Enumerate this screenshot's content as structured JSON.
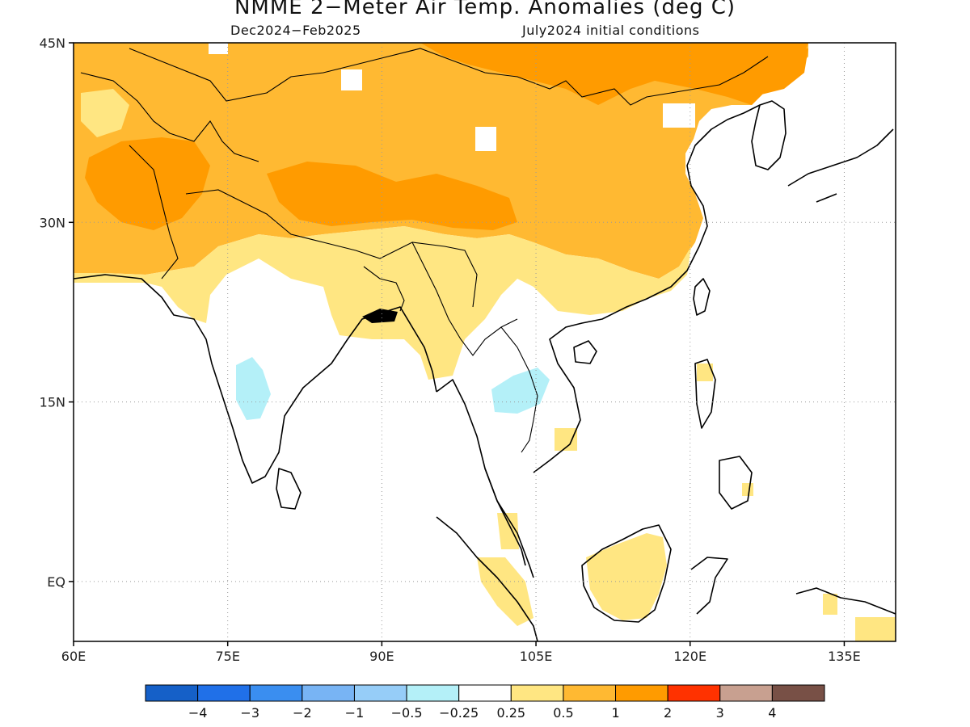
{
  "title": "NMME 2−Meter Air Temp. Anomalies (deg C)",
  "subtitle_left": "Dec2024−Feb2025",
  "subtitle_right": "July2024 initial conditions",
  "map": {
    "lon_range": [
      60,
      140
    ],
    "lat_range": [
      -5,
      45
    ],
    "lon_ticks": [
      {
        "value": 60,
        "label": "60E"
      },
      {
        "value": 75,
        "label": "75E"
      },
      {
        "value": 90,
        "label": "90E"
      },
      {
        "value": 105,
        "label": "105E"
      },
      {
        "value": 120,
        "label": "120E"
      },
      {
        "value": 135,
        "label": "135E"
      }
    ],
    "lat_ticks": [
      {
        "value": 45,
        "label": "45N"
      },
      {
        "value": 30,
        "label": "30N"
      },
      {
        "value": 15,
        "label": "15N"
      },
      {
        "value": 0,
        "label": "EQ"
      }
    ],
    "grid": "dotted"
  },
  "colorbar": {
    "colors": [
      "#1560c8",
      "#2070e8",
      "#3a8ef0",
      "#78b4f4",
      "#96cdf8",
      "#b4f0f8",
      "#ffffff",
      "#ffe682",
      "#ffb932",
      "#ff9b00",
      "#ff3200",
      "#c8a090",
      "#785046"
    ],
    "labels": [
      "−4",
      "−3",
      "−2",
      "−1",
      "−0.5",
      "−0.25",
      "0.25",
      "0.5",
      "1",
      "2",
      "3",
      "4"
    ]
  }
}
